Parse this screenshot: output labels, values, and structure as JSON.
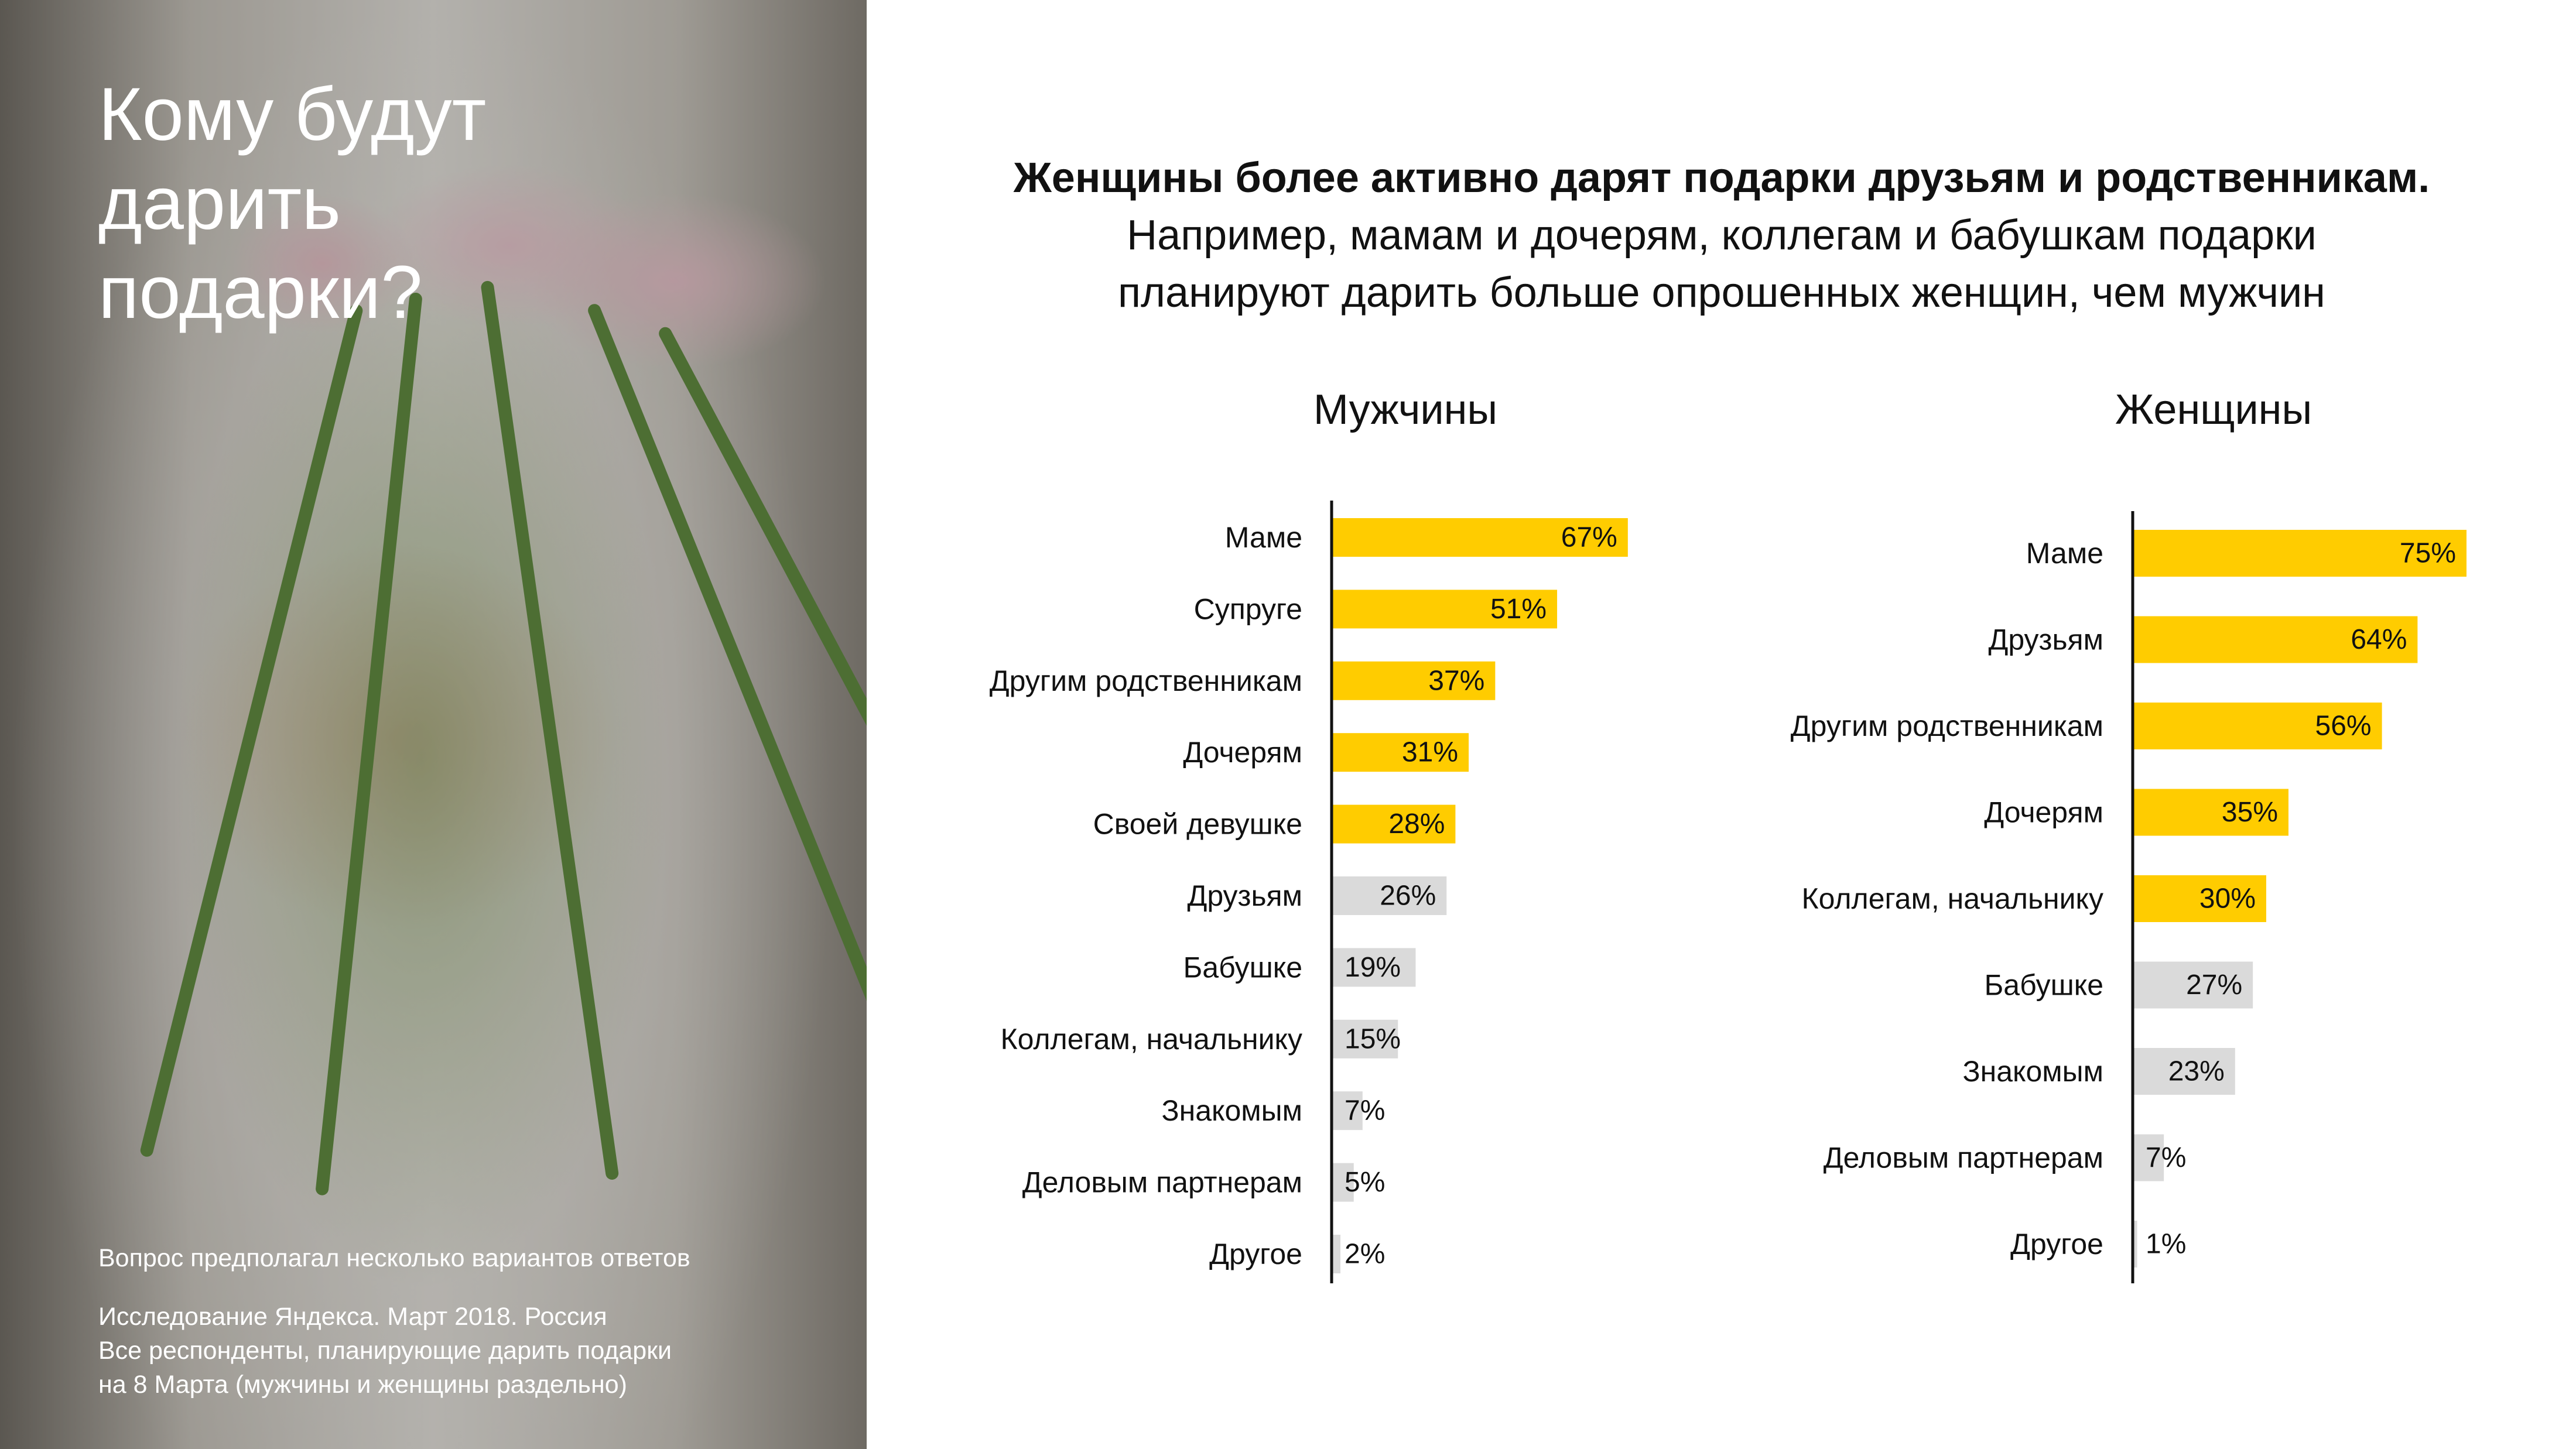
{
  "left_panel": {
    "title_lines": [
      "Кому будут",
      "дарить",
      "подарки?"
    ],
    "note": "Вопрос предполагал несколько вариантов ответов",
    "source_lines": [
      "Исследование Яндекса. Март 2018. Россия",
      "Все респонденты, планирующие дарить подарки",
      "на 8 Марта (мужчины и женщины раздельно)"
    ]
  },
  "headline": {
    "line1": "Женщины более активно дарят подарки друзьям и родственникам.",
    "line2": "Например, мамам и дочерям, коллегам и бабушкам подарки",
    "line3": "планируют дарить больше опрошенных женщин, чем мужчин"
  },
  "colors": {
    "highlight": "#ffcc00",
    "neutral": "#dadada",
    "axis": "#111111"
  },
  "chart_data": [
    {
      "type": "bar",
      "orientation": "horizontal",
      "title": "Мужчины",
      "categories": [
        "Маме",
        "Супруге",
        "Другим родственникам",
        "Дочерям",
        "Своей девушке",
        "Друзьям",
        "Бабушке",
        "Коллегам, начальнику",
        "Знакомым",
        "Деловым партнерам",
        "Другое"
      ],
      "values": [
        67,
        51,
        37,
        31,
        28,
        26,
        19,
        15,
        7,
        5,
        2
      ],
      "value_labels": [
        "67%",
        "51%",
        "37%",
        "31%",
        "28%",
        "26%",
        "19%",
        "15%",
        "7%",
        "5%",
        "2%"
      ],
      "highlighted": [
        true,
        true,
        true,
        true,
        true,
        false,
        false,
        false,
        false,
        false,
        false
      ],
      "unit": "%",
      "xlim": [
        0,
        100
      ],
      "grid": false,
      "legend": "none"
    },
    {
      "type": "bar",
      "orientation": "horizontal",
      "title": "Женщины",
      "categories": [
        "Маме",
        "Друзьям",
        "Другим родственникам",
        "Дочерям",
        "Коллегам, начальнику",
        "Бабушке",
        "Знакомым",
        "Деловым партнерам",
        "Другое"
      ],
      "values": [
        75,
        64,
        56,
        35,
        30,
        27,
        23,
        7,
        1
      ],
      "value_labels": [
        "75%",
        "64%",
        "56%",
        "35%",
        "30%",
        "27%",
        "23%",
        "7%",
        "1%"
      ],
      "highlighted": [
        true,
        true,
        true,
        true,
        true,
        false,
        false,
        false,
        false
      ],
      "unit": "%",
      "xlim": [
        0,
        100
      ],
      "grid": false,
      "legend": "none"
    }
  ]
}
